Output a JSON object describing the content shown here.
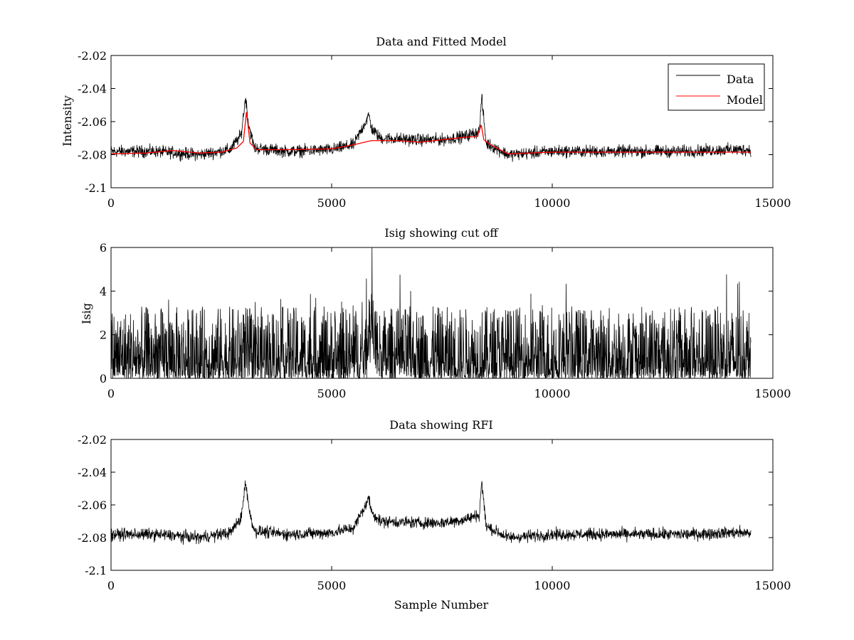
{
  "chart_data": [
    {
      "type": "line",
      "title": "Data and Fitted Model",
      "xlabel": "",
      "ylabel": "Intensity",
      "xlim": [
        0,
        15000
      ],
      "ylim": [
        -2.1,
        -2.02
      ],
      "x_ticks": [
        "0",
        "5000",
        "10000",
        "15000"
      ],
      "y_ticks": [
        "-2.02",
        "-2.04",
        "-2.06",
        "-2.08",
        "-2.1"
      ],
      "legend": {
        "position": "top-right",
        "entries": [
          "Data",
          "Model"
        ]
      },
      "colors": {
        "data": "#000000",
        "model": "#ff0000"
      },
      "series": [
        {
          "name": "Data",
          "x": [
            0,
            1000,
            2000,
            2700,
            2950,
            3050,
            3120,
            3250,
            4000,
            5000,
            5500,
            5850,
            5900,
            6100,
            7000,
            7500,
            8000,
            8350,
            8400,
            8500,
            9000,
            10000,
            11000,
            12000,
            13000,
            14000,
            14500
          ],
          "values": [
            -2.078,
            -2.078,
            -2.08,
            -2.077,
            -2.068,
            -2.045,
            -2.062,
            -2.076,
            -2.078,
            -2.077,
            -2.074,
            -2.056,
            -2.064,
            -2.07,
            -2.071,
            -2.071,
            -2.069,
            -2.066,
            -2.045,
            -2.073,
            -2.08,
            -2.078,
            -2.078,
            -2.078,
            -2.078,
            -2.077,
            -2.077
          ],
          "noise_amplitude": 0.006
        },
        {
          "name": "Model",
          "x": [
            0,
            800,
            1400,
            2000,
            2500,
            2850,
            3000,
            3070,
            3150,
            3300,
            4000,
            5000,
            5500,
            5900,
            6500,
            7000,
            7500,
            8000,
            8300,
            8390,
            8450,
            8600,
            9000,
            9500,
            10000,
            12000,
            14500
          ],
          "values": [
            -2.0795,
            -2.079,
            -2.0775,
            -2.079,
            -2.0785,
            -2.076,
            -2.072,
            -2.054,
            -2.073,
            -2.077,
            -2.077,
            -2.0765,
            -2.074,
            -2.0715,
            -2.0715,
            -2.0725,
            -2.071,
            -2.0695,
            -2.069,
            -2.062,
            -2.071,
            -2.074,
            -2.0795,
            -2.079,
            -2.0785,
            -2.0785,
            -2.0785
          ]
        }
      ]
    },
    {
      "type": "line",
      "title": "Isig showing cut off",
      "xlabel": "",
      "ylabel": "Isig",
      "xlim": [
        0,
        15000
      ],
      "ylim": [
        0,
        6
      ],
      "x_ticks": [
        "0",
        "5000",
        "10000",
        "15000"
      ],
      "y_ticks": [
        "0",
        "2",
        "4",
        "6"
      ],
      "series": [
        {
          "x": [
            0,
            5700,
            5800,
            5870,
            5950,
            6050,
            14500
          ],
          "values": [
            0.8,
            0.8,
            1.6,
            4.2,
            2.5,
            1.0,
            0.8
          ],
          "peak_max": 4.2,
          "noise_amplitude": 1.5
        }
      ]
    },
    {
      "type": "line",
      "title": "Data showing RFI",
      "xlabel": "Sample Number",
      "ylabel": "",
      "xlim": [
        0,
        15000
      ],
      "ylim": [
        -2.1,
        -2.02
      ],
      "x_ticks": [
        "0",
        "5000",
        "10000",
        "15000"
      ],
      "y_ticks": [
        "-2.02",
        "-2.04",
        "-2.06",
        "-2.08",
        "-2.1"
      ],
      "series": [
        {
          "x": [
            0,
            1000,
            2000,
            2700,
            2950,
            3050,
            3120,
            3250,
            4000,
            5000,
            5500,
            5850,
            5900,
            6100,
            7000,
            7500,
            8000,
            8350,
            8400,
            8500,
            9000,
            10000,
            11000,
            12000,
            13000,
            14000,
            14500
          ],
          "values": [
            -2.078,
            -2.078,
            -2.08,
            -2.077,
            -2.068,
            -2.045,
            -2.062,
            -2.076,
            -2.078,
            -2.077,
            -2.074,
            -2.056,
            -2.064,
            -2.07,
            -2.071,
            -2.071,
            -2.069,
            -2.066,
            -2.045,
            -2.073,
            -2.08,
            -2.078,
            -2.078,
            -2.078,
            -2.078,
            -2.077,
            -2.077
          ],
          "noise_amplitude": 0.006
        }
      ]
    }
  ]
}
